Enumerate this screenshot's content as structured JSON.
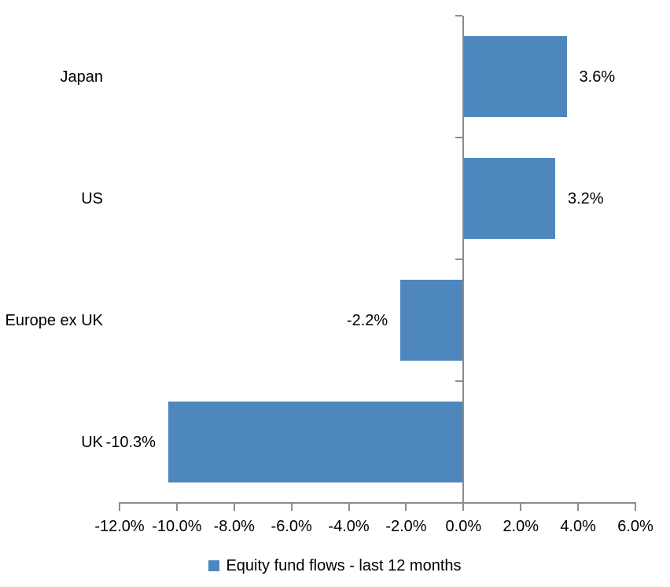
{
  "chart_data": {
    "type": "bar",
    "orientation": "horizontal",
    "categories": [
      "Japan",
      "US",
      "Europe ex UK",
      "UK"
    ],
    "values": [
      3.6,
      3.2,
      -2.2,
      -10.3
    ],
    "value_labels": [
      "3.6%",
      "3.2%",
      "-2.2%",
      "-10.3%"
    ],
    "xlim": [
      -12,
      6
    ],
    "x_tick_step": 2,
    "x_tick_labels": [
      "-12.0%",
      "-10.0%",
      "-8.0%",
      "-6.0%",
      "-4.0%",
      "-2.0%",
      "0.0%",
      "2.0%",
      "4.0%",
      "6.0%"
    ],
    "legend_label": "Equity fund flows - last 12 months",
    "legend_position": "bottom-center",
    "grid": false,
    "colors": {
      "bar": "#4E87BD",
      "axis": "#8C8C8C",
      "text": "#000000"
    }
  }
}
